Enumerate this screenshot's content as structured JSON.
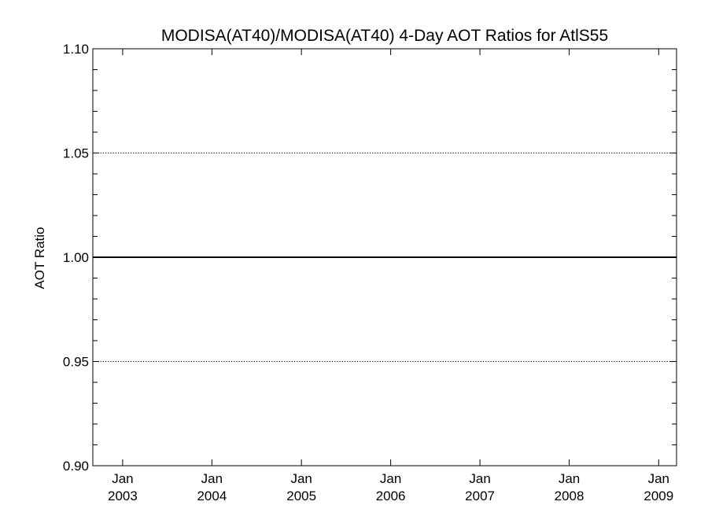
{
  "chart_data": {
    "type": "line",
    "title": "MODISA(AT40)/MODISA(AT40) 4-Day AOT Ratios for AtlS55",
    "xlabel": "",
    "ylabel": "AOT Ratio",
    "ylim": [
      0.9,
      1.1
    ],
    "y_ticks": [
      "0.90",
      "0.95",
      "1.00",
      "1.05",
      "1.10"
    ],
    "y_major_values": [
      0.9,
      0.95,
      1.0,
      1.05,
      1.1
    ],
    "y_minor_step": 0.01,
    "xlim": [
      "2002-09-01",
      "2009-03-15"
    ],
    "x_ticks": [
      {
        "month": "Jan",
        "year": "2003",
        "date": "2003-01-01"
      },
      {
        "month": "Jan",
        "year": "2004",
        "date": "2004-01-01"
      },
      {
        "month": "Jan",
        "year": "2005",
        "date": "2005-01-01"
      },
      {
        "month": "Jan",
        "year": "2006",
        "date": "2006-01-01"
      },
      {
        "month": "Jan",
        "year": "2007",
        "date": "2007-01-01"
      },
      {
        "month": "Jan",
        "year": "2008",
        "date": "2008-01-01"
      },
      {
        "month": "Jan",
        "year": "2009",
        "date": "2009-01-01"
      }
    ],
    "reference_lines": [
      {
        "y": 1.0,
        "style": "solid"
      },
      {
        "y": 0.9,
        "style": "dotted"
      },
      {
        "y": 0.95,
        "style": "dotted"
      },
      {
        "y": 1.05,
        "style": "dotted"
      },
      {
        "y": 1.1,
        "style": "dotted"
      }
    ],
    "series": [],
    "grid": false,
    "colors": {
      "axis": "#000000",
      "background": "#ffffff"
    }
  }
}
